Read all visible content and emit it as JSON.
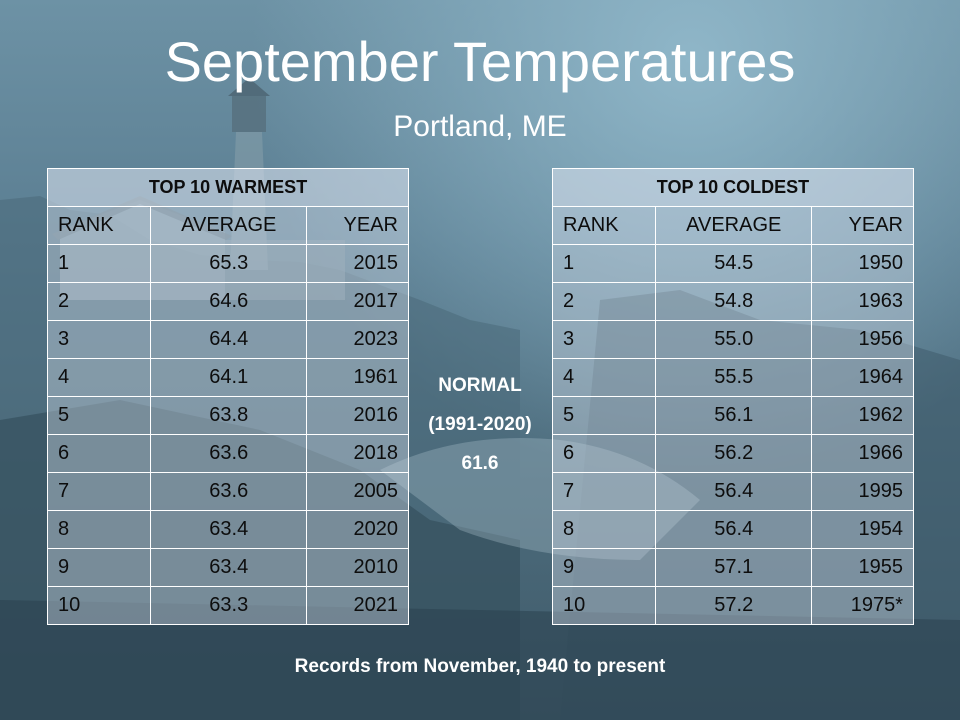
{
  "title": "September Temperatures",
  "subtitle": "Portland, ME",
  "warmest": {
    "heading": "TOP 10 WARMEST",
    "columns": [
      "RANK",
      "AVERAGE",
      "YEAR"
    ],
    "rows": [
      {
        "rank": "1",
        "average": "65.3",
        "year": "2015"
      },
      {
        "rank": "2",
        "average": "64.6",
        "year": "2017"
      },
      {
        "rank": "3",
        "average": "64.4",
        "year": "2023"
      },
      {
        "rank": "4",
        "average": "64.1",
        "year": "1961"
      },
      {
        "rank": "5",
        "average": "63.8",
        "year": "2016"
      },
      {
        "rank": "6",
        "average": "63.6",
        "year": "2018"
      },
      {
        "rank": "7",
        "average": "63.6",
        "year": "2005"
      },
      {
        "rank": "8",
        "average": "63.4",
        "year": "2020"
      },
      {
        "rank": "9",
        "average": "63.4",
        "year": "2010"
      },
      {
        "rank": "10",
        "average": "63.3",
        "year": "2021"
      }
    ]
  },
  "coldest": {
    "heading": "TOP 10 COLDEST",
    "columns": [
      "RANK",
      "AVERAGE",
      "YEAR"
    ],
    "rows": [
      {
        "rank": "1",
        "average": "54.5",
        "year": "1950"
      },
      {
        "rank": "2",
        "average": "54.8",
        "year": "1963"
      },
      {
        "rank": "3",
        "average": "55.0",
        "year": "1956"
      },
      {
        "rank": "4",
        "average": "55.5",
        "year": "1964"
      },
      {
        "rank": "5",
        "average": "56.1",
        "year": "1962"
      },
      {
        "rank": "6",
        "average": "56.2",
        "year": "1966"
      },
      {
        "rank": "7",
        "average": "56.4",
        "year": "1995"
      },
      {
        "rank": "8",
        "average": "56.4",
        "year": "1954"
      },
      {
        "rank": "9",
        "average": "57.1",
        "year": "1955"
      },
      {
        "rank": "10",
        "average": "57.2",
        "year": "1975*"
      }
    ]
  },
  "normal": {
    "label": "NORMAL",
    "period": "(1991-2020)",
    "value": "61.6"
  },
  "footer": "Records from November, 1940 to present"
}
